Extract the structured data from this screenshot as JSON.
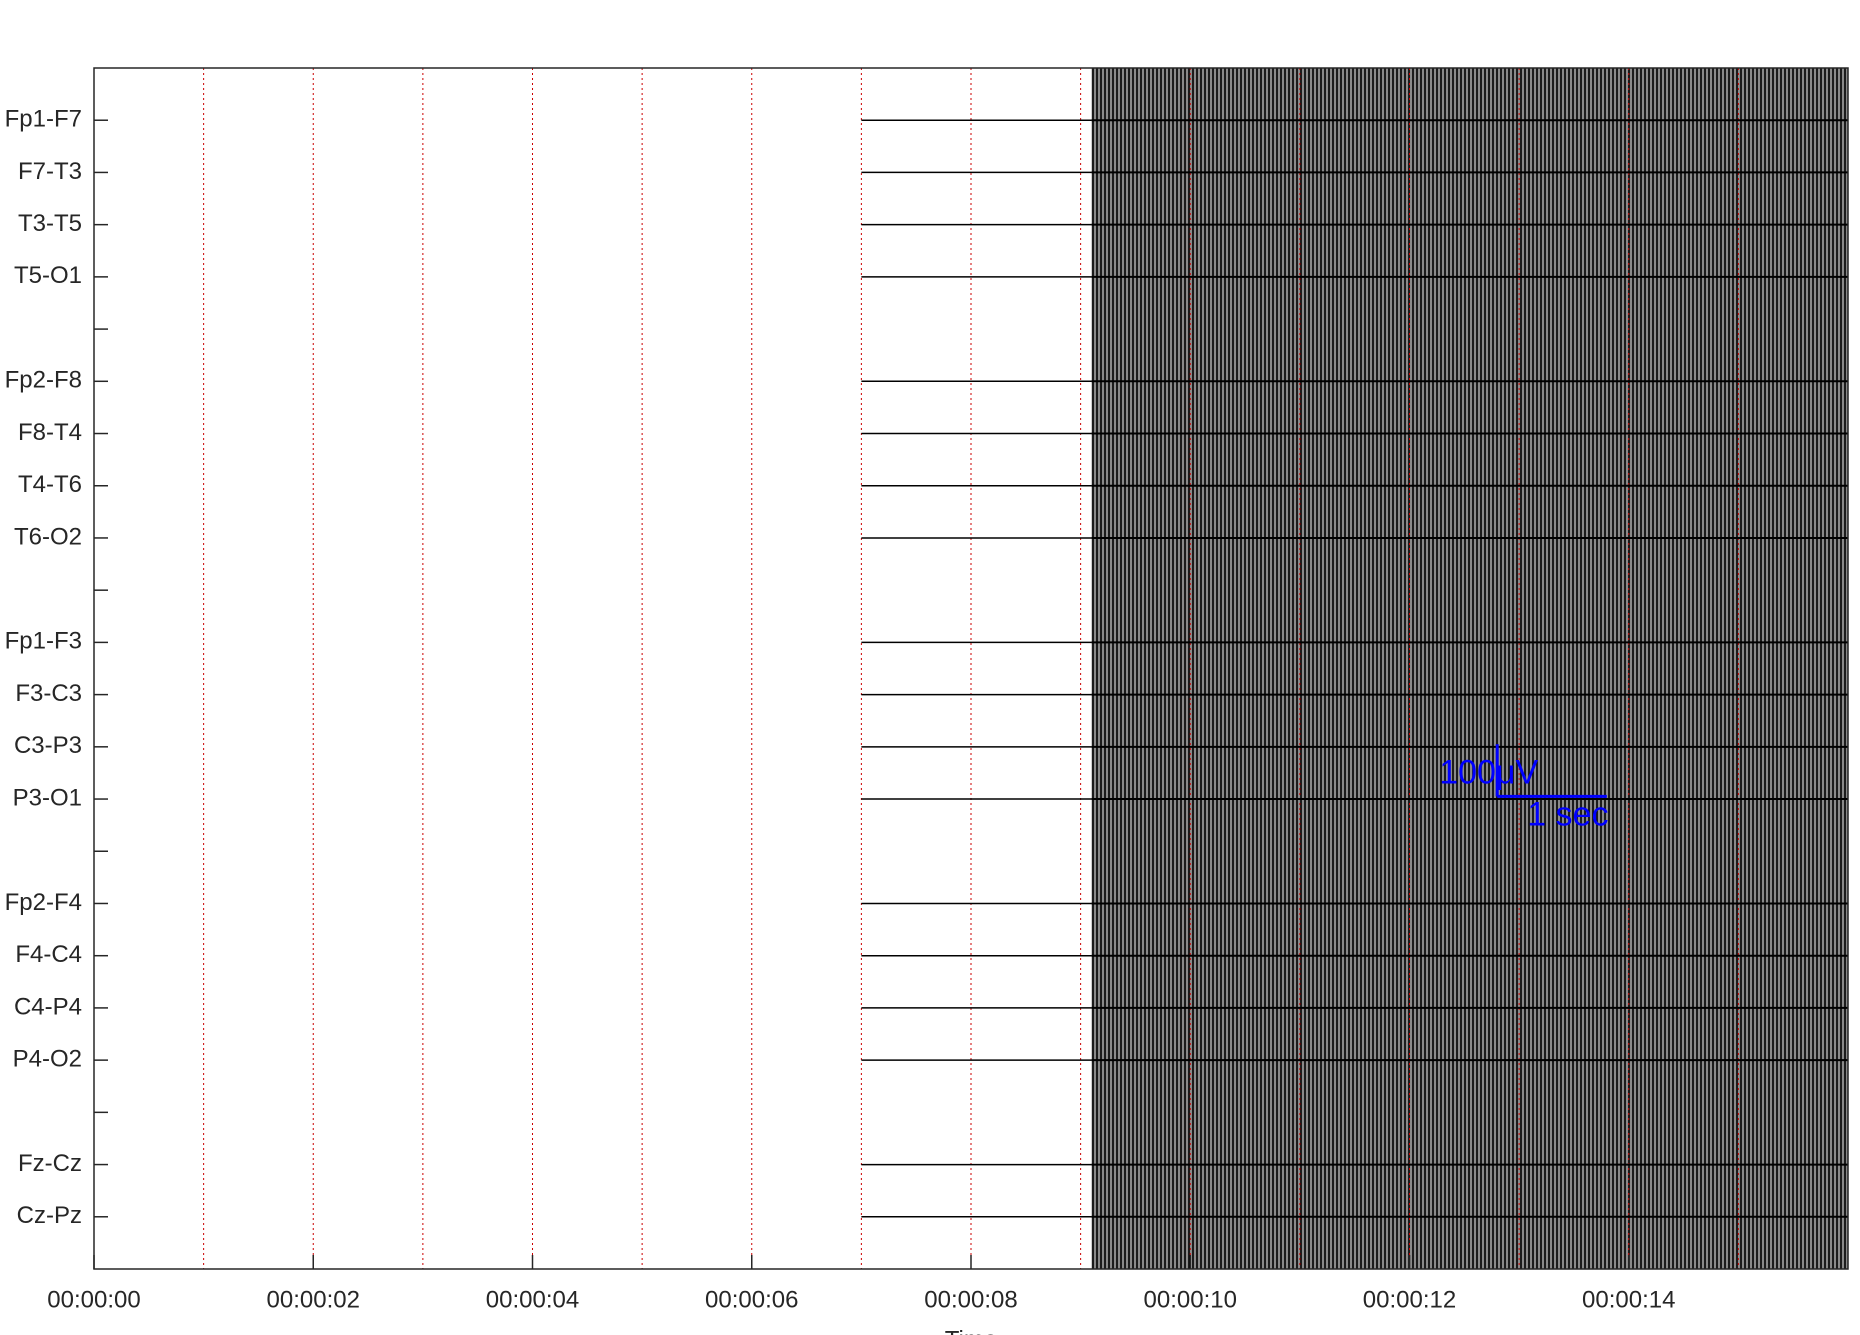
{
  "chart_data": {
    "type": "eeg",
    "xlabel": "Time",
    "xlim": [
      0,
      16
    ],
    "xticks": [
      {
        "value": 0,
        "label": "00:00:00"
      },
      {
        "value": 2,
        "label": "00:00:02"
      },
      {
        "value": 4,
        "label": "00:00:04"
      },
      {
        "value": 6,
        "label": "00:00:06"
      },
      {
        "value": 8,
        "label": "00:00:08"
      },
      {
        "value": 10,
        "label": "00:00:10"
      },
      {
        "value": 12,
        "label": "00:00:12"
      },
      {
        "value": 14,
        "label": "00:00:14"
      }
    ],
    "xgrid": [
      1,
      2,
      3,
      4,
      5,
      6,
      7,
      8,
      9,
      10,
      11,
      12,
      13,
      14,
      15
    ],
    "grid_color": "#cc0000",
    "ylim": [
      0,
      23
    ],
    "yticks": [
      {
        "value": 1,
        "label": "Fp1-F7"
      },
      {
        "value": 2,
        "label": "F7-T3"
      },
      {
        "value": 3,
        "label": "T3-T5"
      },
      {
        "value": 4,
        "label": "T5-O1"
      },
      {
        "value": 5,
        "label": null
      },
      {
        "value": 6,
        "label": "Fp2-F8"
      },
      {
        "value": 7,
        "label": "F8-T4"
      },
      {
        "value": 8,
        "label": "T4-T6"
      },
      {
        "value": 9,
        "label": "T6-O2"
      },
      {
        "value": 10,
        "label": null
      },
      {
        "value": 11,
        "label": "Fp1-F3"
      },
      {
        "value": 12,
        "label": "F3-C3"
      },
      {
        "value": 13,
        "label": "C3-P3"
      },
      {
        "value": 14,
        "label": "P3-O1"
      },
      {
        "value": 15,
        "label": null
      },
      {
        "value": 16,
        "label": "Fp2-F4"
      },
      {
        "value": 17,
        "label": "F4-C4"
      },
      {
        "value": 18,
        "label": "C4-P4"
      },
      {
        "value": 19,
        "label": "P4-O2"
      },
      {
        "value": 20,
        "label": null
      },
      {
        "value": 21,
        "label": "Fz-Cz"
      },
      {
        "value": 22,
        "label": "Cz-Pz"
      }
    ],
    "trace_x": [
      7,
      9.1
    ],
    "trace_color": "#000000",
    "scale_bar": {
      "x": 12.8,
      "y": 13.95,
      "time": 1,
      "time_label": "1 sec",
      "amplitude": 100,
      "amplitude_label": "100μV",
      "color": "#0000ff"
    }
  }
}
